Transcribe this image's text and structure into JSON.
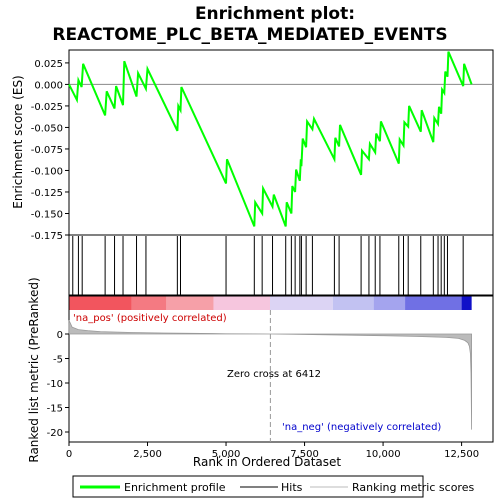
{
  "chart_data": {
    "type": "line",
    "title_line1": "Enrichment plot:",
    "title_line2": "REACTOME_PLC_BETA_MEDIATED_EVENTS",
    "xlabel": "Rank in Ordered Dataset",
    "ylabel_top": "Enrichment score (ES)",
    "ylabel_bottom": "Ranked list metric (PreRanked)",
    "xlim": [
      0,
      13500
    ],
    "x_ticks": [
      0,
      2500,
      5000,
      7500,
      10000,
      12500
    ],
    "x_tick_labels": [
      "0",
      "2,500",
      "5,000",
      "7,500",
      "10,000",
      "12,500"
    ],
    "es_ylim": [
      -0.175,
      0.04
    ],
    "es_ticks": [
      0.025,
      0.0,
      -0.025,
      -0.05,
      -0.075,
      -0.1,
      -0.125,
      -0.15,
      -0.175
    ],
    "es_tick_labels": [
      "0.025",
      "0.000",
      "-0.025",
      "-0.050",
      "-0.075",
      "-0.100",
      "-0.125",
      "-0.150",
      "-0.175"
    ],
    "metric_ylim": [
      -20,
      3
    ],
    "metric_ticks": [
      0,
      -5,
      -10,
      -15,
      -20
    ],
    "metric_tick_labels": [
      "0",
      "-5",
      "-10",
      "-15",
      "-20"
    ],
    "es_curve": {
      "x": [
        0,
        250,
        300,
        400,
        450,
        1150,
        1200,
        1450,
        1500,
        1720,
        1760,
        2150,
        2200,
        2450,
        2500,
        3450,
        3480,
        3550,
        3580,
        5000,
        5030,
        5900,
        5930,
        6150,
        6180,
        6480,
        6520,
        6900,
        6930,
        7080,
        7110,
        7200,
        7230,
        7350,
        7380,
        7400,
        7440,
        7550,
        7580,
        7750,
        7800,
        8450,
        8480,
        8600,
        8630,
        9300,
        9330,
        9550,
        9580,
        9750,
        9780,
        9900,
        9930,
        10500,
        10530,
        10650,
        10680,
        10800,
        10830,
        11200,
        11230,
        11600,
        11630,
        11750,
        11780,
        11850,
        11880,
        11950,
        11980,
        12050,
        12080,
        12550,
        12580,
        12820
      ],
      "y": [
        0.0,
        -0.018,
        0.005,
        -0.003,
        0.024,
        -0.036,
        -0.008,
        -0.028,
        -0.002,
        -0.024,
        0.027,
        -0.014,
        0.013,
        -0.005,
        0.018,
        -0.054,
        -0.025,
        -0.03,
        -0.003,
        -0.115,
        -0.087,
        -0.165,
        -0.137,
        -0.15,
        -0.121,
        -0.142,
        -0.128,
        -0.165,
        -0.137,
        -0.15,
        -0.118,
        -0.125,
        -0.099,
        -0.112,
        -0.087,
        -0.095,
        -0.063,
        -0.073,
        -0.043,
        -0.052,
        -0.04,
        -0.087,
        -0.062,
        -0.072,
        -0.047,
        -0.105,
        -0.077,
        -0.087,
        -0.069,
        -0.079,
        -0.057,
        -0.066,
        -0.043,
        -0.092,
        -0.064,
        -0.071,
        -0.044,
        -0.049,
        -0.025,
        -0.055,
        -0.03,
        -0.067,
        -0.039,
        -0.046,
        -0.026,
        -0.034,
        -0.006,
        -0.01,
        0.015,
        0.009,
        0.038,
        -0.002,
        0.024,
        0.0
      ]
    },
    "hits": [
      120,
      300,
      420,
      1150,
      1450,
      1720,
      2150,
      2450,
      3450,
      3550,
      5000,
      5900,
      6150,
      6480,
      6900,
      7080,
      7200,
      7350,
      7400,
      7550,
      7750,
      8450,
      8600,
      9300,
      9550,
      9750,
      9900,
      10500,
      10650,
      10800,
      11200,
      11600,
      11750,
      11850,
      11950,
      12050,
      12550
    ],
    "metric_curve": {
      "x": [
        0,
        100,
        300,
        600,
        1000,
        2000,
        3000,
        4600,
        5000,
        6412,
        7000,
        8000,
        9000,
        10000,
        11000,
        12000,
        12400,
        12600,
        12700,
        12750,
        12780,
        12800,
        12820
      ],
      "y": [
        2.8,
        1.4,
        0.9,
        0.7,
        0.5,
        0.3,
        0.2,
        0.1,
        0.05,
        0.0,
        -0.05,
        -0.15,
        -0.25,
        -0.35,
        -0.5,
        -0.7,
        -0.9,
        -1.3,
        -1.8,
        -2.5,
        -4.0,
        -8.0,
        -19.5
      ]
    },
    "zero_cross_label": "Zero cross at 6412",
    "zero_cross_x": 6412,
    "pos_label": "'na_pos' (positively correlated)",
    "neg_label": "'na_neg' (negatively correlated)",
    "pos_label_color": "#cc0000",
    "neg_label_color": "#0000cc",
    "curve_color": "#00ff00",
    "hit_color": "#000000",
    "metric_fill_color": "#bbbbbb",
    "legend": [
      {
        "label": "Enrichment profile",
        "color": "#00ff00",
        "style": "line-thick"
      },
      {
        "label": "Hits",
        "color": "#000000",
        "style": "line-thin"
      },
      {
        "label": "Ranking metric scores",
        "color": "#bbbbbb",
        "style": "line-thin"
      }
    ],
    "legend_placement": "bottom",
    "ranking_bar_stops": [
      {
        "from": 0,
        "to": 2000,
        "color": "#f2555e"
      },
      {
        "from": 2000,
        "to": 3100,
        "color": "#f47a82"
      },
      {
        "from": 3100,
        "to": 4600,
        "color": "#f6a0a8"
      },
      {
        "from": 4600,
        "to": 6400,
        "color": "#f6c6de"
      },
      {
        "from": 6400,
        "to": 8400,
        "color": "#dcd4f4"
      },
      {
        "from": 8400,
        "to": 9700,
        "color": "#c2c2f2"
      },
      {
        "from": 9700,
        "to": 10700,
        "color": "#a4a4ee"
      },
      {
        "from": 10700,
        "to": 12500,
        "color": "#7070e4"
      },
      {
        "from": 12500,
        "to": 12820,
        "color": "#1010c8"
      }
    ]
  }
}
